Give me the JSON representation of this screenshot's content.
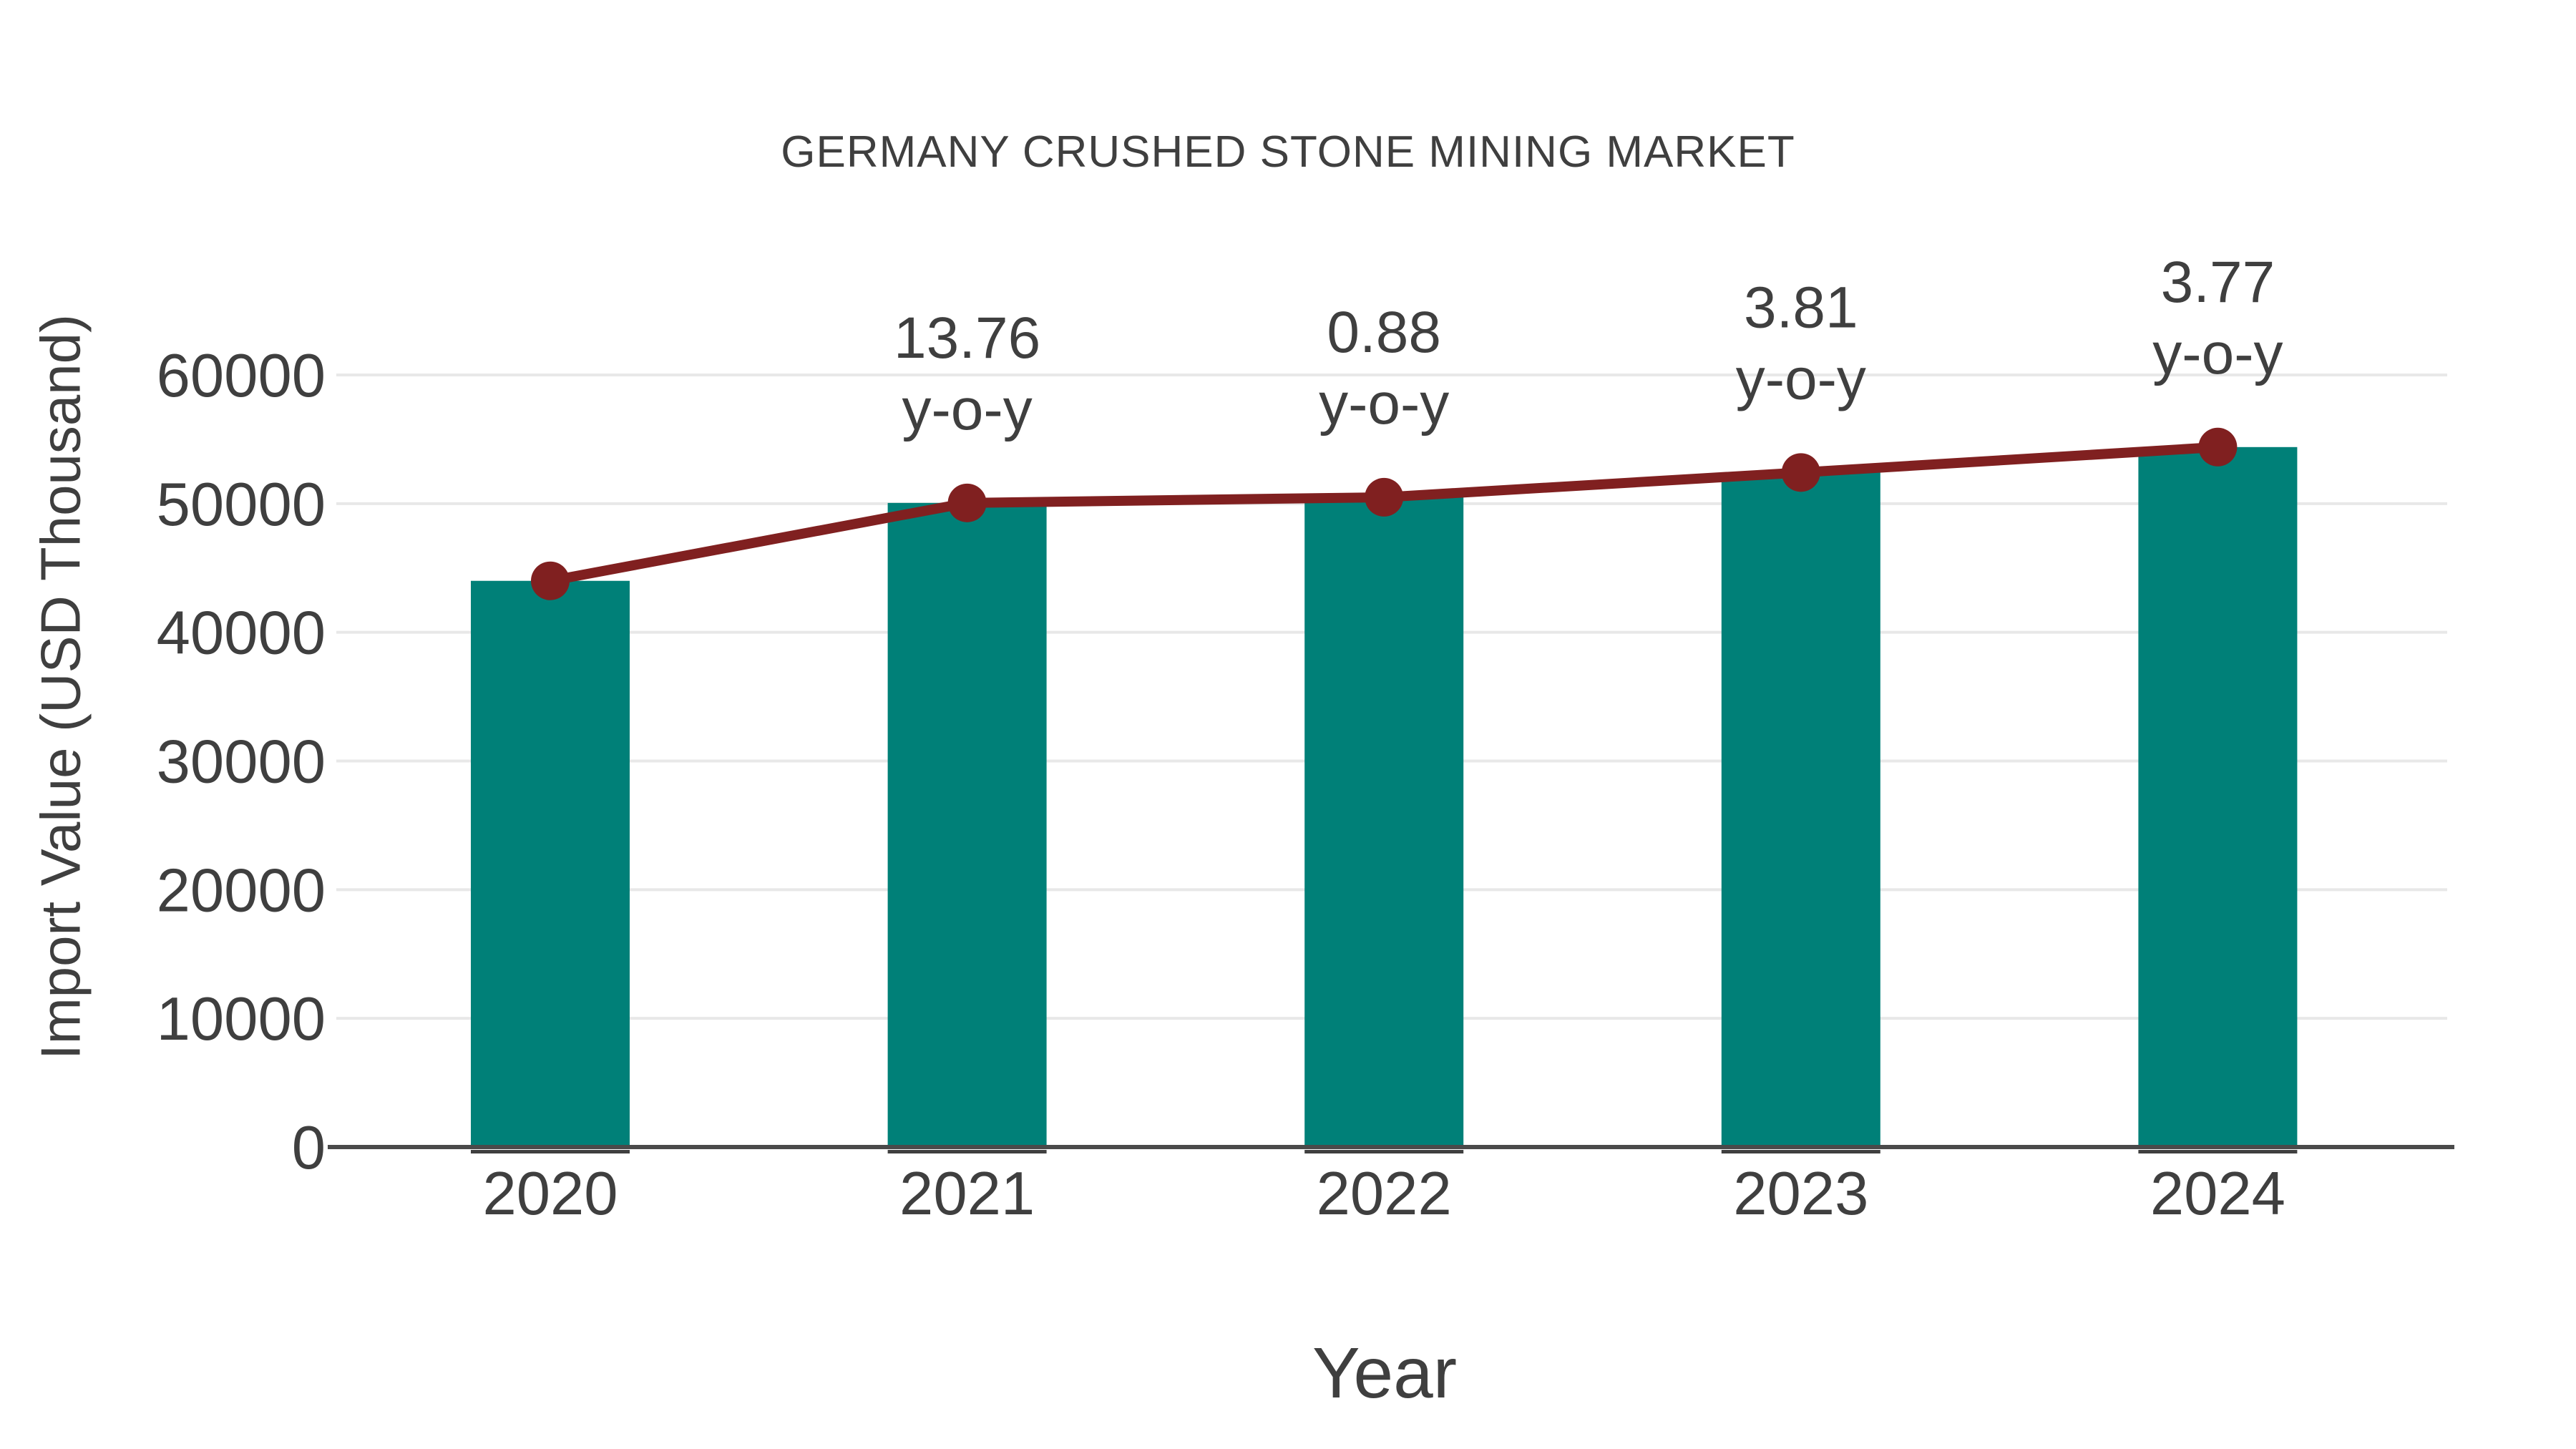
{
  "page": {
    "background": "#ffffff"
  },
  "chart_data": {
    "type": "bar",
    "title": "GERMANY CRUSHED STONE MINING MARKET",
    "xlabel": "Year",
    "ylabel": "Import Value (USD Thousand)",
    "categories": [
      "2020",
      "2021",
      "2022",
      "2023",
      "2024"
    ],
    "series": [
      {
        "name": "Import Value bars",
        "type": "bar",
        "values": [
          44000,
          50054,
          50495,
          52419,
          54395
        ]
      },
      {
        "name": "Import Value trend line",
        "type": "line",
        "values": [
          44000,
          50054,
          50495,
          52419,
          54395
        ]
      }
    ],
    "annotations": [
      {
        "category": "2021",
        "value": "13.76",
        "suffix": "y-o-y"
      },
      {
        "category": "2022",
        "value": "0.88",
        "suffix": "y-o-y"
      },
      {
        "category": "2023",
        "value": "3.81",
        "suffix": "y-o-y"
      },
      {
        "category": "2024",
        "value": "3.77",
        "suffix": "y-o-y"
      }
    ],
    "ylim": [
      0,
      60000
    ],
    "ytick_step": 10000,
    "ytick_labels": [
      "0",
      "10000",
      "20000",
      "30000",
      "40000",
      "50000",
      "60000"
    ],
    "grid": true,
    "legend": false,
    "colors": {
      "bar": "#008078",
      "line": "#802020",
      "marker": "#802020",
      "text": "#3f3f3f",
      "grid": "#e8e8e8",
      "axis": "#4a4a4a",
      "category_tick": "#3f3f3f"
    }
  }
}
